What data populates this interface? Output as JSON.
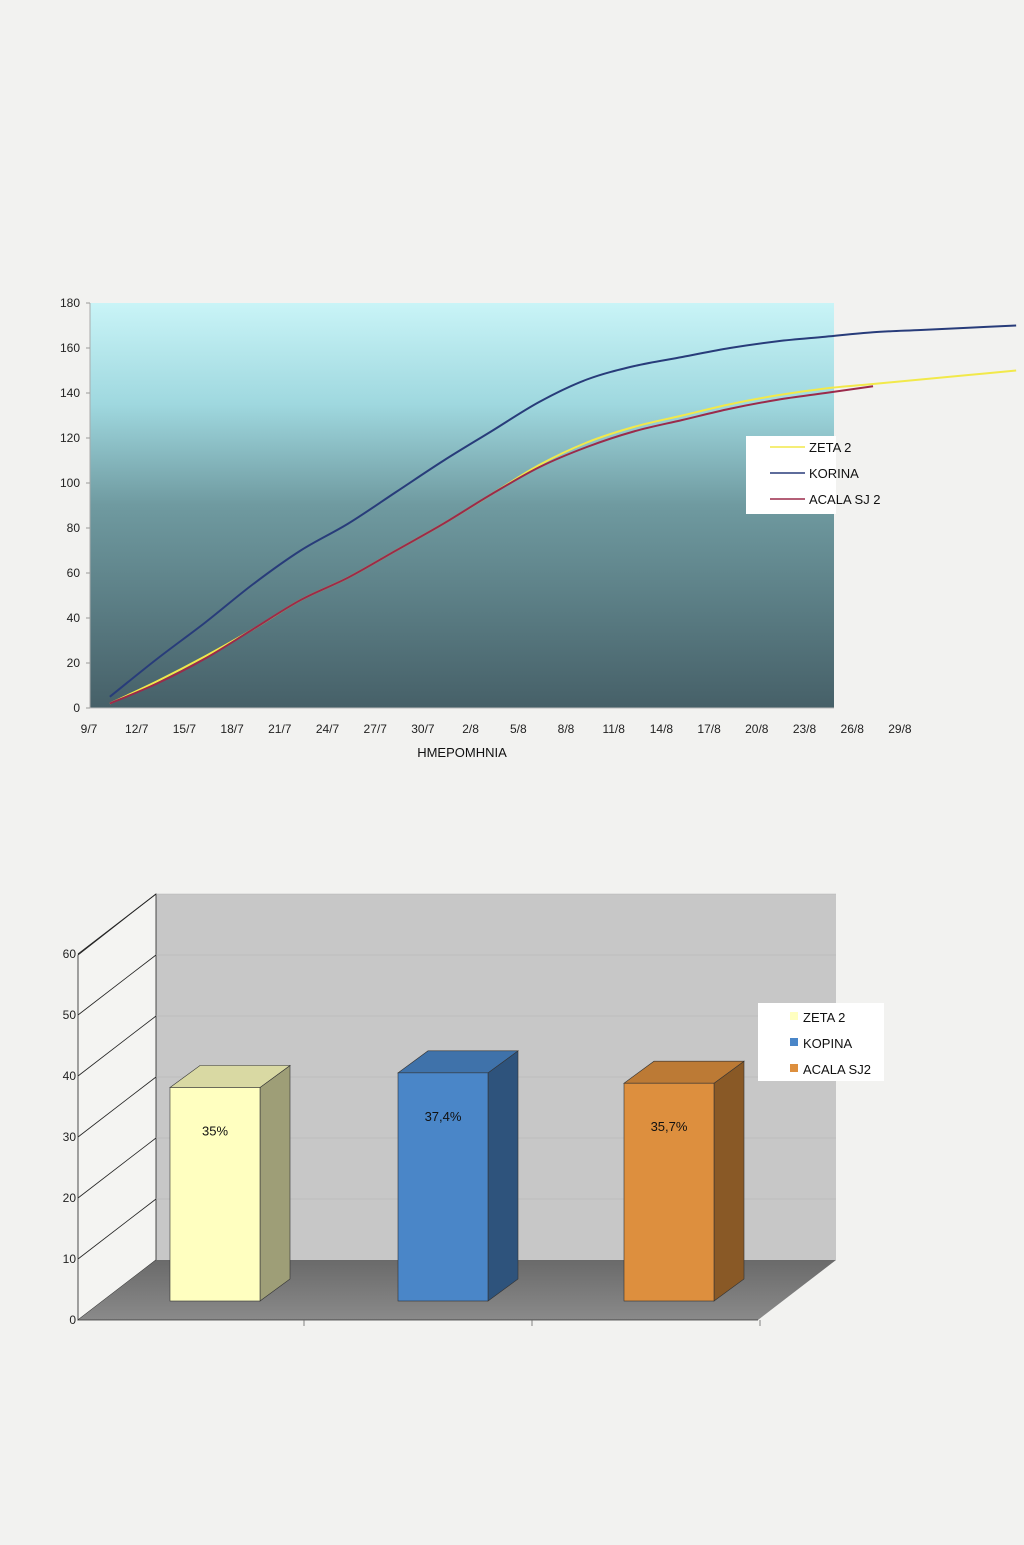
{
  "chart_data": [
    {
      "type": "line",
      "title": "",
      "xlabel": "ΗΜΕΡΟΜΗΝΙΑ",
      "ylabel": "",
      "ylim": [
        0,
        180
      ],
      "yticks": [
        0,
        20,
        40,
        60,
        80,
        100,
        120,
        140,
        160,
        180
      ],
      "categories": [
        "9/7",
        "12/7",
        "15/7",
        "18/7",
        "21/7",
        "24/7",
        "27/7",
        "30/7",
        "2/8",
        "5/8",
        "8/8",
        "11/8",
        "14/8",
        "17/8",
        "20/8",
        "23/8",
        "26/8",
        "29/8"
      ],
      "legend_position": "right",
      "series": [
        {
          "name": "ZETA 2",
          "color": "#f2e94a",
          "x": [
            0.5,
            1.5,
            2.5,
            3.5,
            4.5,
            5.5,
            6.5,
            7.5,
            8.5,
            9.5,
            10.5,
            11.5,
            12.5,
            13.5,
            14.5,
            15.5,
            16.5,
            17.5,
            18.5,
            19.5
          ],
          "values": [
            2,
            12,
            23,
            35,
            48,
            58,
            70,
            82,
            95,
            108,
            118,
            125,
            130,
            135,
            139,
            142,
            144,
            146,
            148,
            150
          ]
        },
        {
          "name": "KORINA",
          "color": "#283c7a",
          "x": [
            0.5,
            1.5,
            2.5,
            3.5,
            4.5,
            5.5,
            6.5,
            7.5,
            8.5,
            9.5,
            10.5,
            11.5,
            12.5,
            13.5,
            14.5,
            15.5,
            16.5,
            17.5,
            18.5,
            19.5
          ],
          "values": [
            5,
            22,
            38,
            55,
            70,
            82,
            96,
            110,
            123,
            136,
            146,
            152,
            156,
            160,
            163,
            165,
            167,
            168,
            169,
            170
          ]
        },
        {
          "name": "ACALA SJ 2",
          "color": "#9b2a4a",
          "x": [
            0.5,
            1.5,
            2.5,
            3.5,
            4.5,
            5.5,
            6.5,
            7.5,
            8.5,
            9.5,
            10.5,
            11.5,
            12.5,
            13.5,
            14.5,
            15.5,
            16.5
          ],
          "values": [
            2,
            11,
            22,
            35,
            48,
            58,
            70,
            82,
            95,
            107,
            116,
            123,
            128,
            133,
            137,
            140,
            143
          ]
        }
      ]
    },
    {
      "type": "bar",
      "title": "",
      "xlabel": "",
      "ylabel": "",
      "ylim": [
        0,
        60
      ],
      "yticks": [
        0,
        10,
        20,
        30,
        40,
        50,
        60
      ],
      "categories": [
        ""
      ],
      "legend_position": "right",
      "series": [
        {
          "name": "ZETA 2",
          "values": [
            35.0
          ],
          "label": "35%",
          "color": "#ffffc0"
        },
        {
          "name": "KOPINA",
          "values": [
            37.4
          ],
          "label": "37,4%",
          "color": "#4a86c8"
        },
        {
          "name": "ACALA SJ2",
          "values": [
            35.7
          ],
          "label": "35,7%",
          "color": "#dd8f3e"
        }
      ]
    }
  ]
}
